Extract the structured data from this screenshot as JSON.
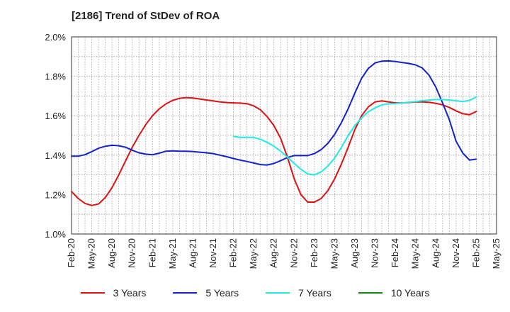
{
  "chart_data": {
    "type": "line",
    "title": "[2186]  Trend of StDev of ROA",
    "xlabel": "",
    "ylabel": "",
    "ylim": [
      1.0,
      2.0
    ],
    "yticks": [
      "2.0%",
      "1.8%",
      "1.6%",
      "1.4%",
      "1.2%",
      "1.0%"
    ],
    "x_tick_labels": [
      "Feb-20",
      "May-20",
      "Aug-20",
      "Nov-20",
      "Feb-21",
      "May-21",
      "Aug-21",
      "Nov-21",
      "Feb-22",
      "May-22",
      "Aug-22",
      "Nov-22",
      "Feb-23",
      "May-23",
      "Aug-23",
      "Nov-23",
      "Feb-24",
      "May-24",
      "Aug-24",
      "Nov-24",
      "Feb-25",
      "May-25"
    ],
    "grid": true,
    "legend_position": "bottom",
    "series": [
      {
        "name": "3 Years",
        "color": "#dd1111",
        "x": [
          "Feb-20",
          "Mar-20",
          "Apr-20",
          "May-20",
          "Jun-20",
          "Jul-20",
          "Aug-20",
          "Sep-20",
          "Oct-20",
          "Nov-20",
          "Dec-20",
          "Jan-21",
          "Feb-21",
          "Mar-21",
          "Apr-21",
          "May-21",
          "Jun-21",
          "Jul-21",
          "Aug-21",
          "Sep-21",
          "Oct-21",
          "Nov-21",
          "Dec-21",
          "Jan-22",
          "Feb-22",
          "Mar-22",
          "Apr-22",
          "May-22",
          "Jun-22",
          "Jul-22",
          "Aug-22",
          "Sep-22",
          "Oct-22",
          "Nov-22",
          "Dec-22",
          "Jan-23",
          "Feb-23",
          "Mar-23",
          "Apr-23",
          "May-23",
          "Jun-23",
          "Jul-23",
          "Aug-23",
          "Sep-23",
          "Oct-23",
          "Nov-23",
          "Dec-23",
          "Jan-24",
          "Feb-24",
          "Mar-24",
          "Apr-24",
          "May-24",
          "Jun-24",
          "Jul-24",
          "Aug-24",
          "Sep-24",
          "Oct-24",
          "Nov-24",
          "Dec-24",
          "Jan-25",
          "Feb-25"
        ],
        "values": [
          1.215,
          1.18,
          1.155,
          1.145,
          1.152,
          1.185,
          1.235,
          1.3,
          1.37,
          1.44,
          1.5,
          1.555,
          1.6,
          1.635,
          1.66,
          1.678,
          1.688,
          1.692,
          1.69,
          1.685,
          1.68,
          1.675,
          1.67,
          1.667,
          1.665,
          1.664,
          1.661,
          1.65,
          1.63,
          1.595,
          1.55,
          1.485,
          1.39,
          1.28,
          1.2,
          1.162,
          1.162,
          1.18,
          1.22,
          1.28,
          1.355,
          1.44,
          1.53,
          1.6,
          1.645,
          1.67,
          1.675,
          1.67,
          1.665,
          1.665,
          1.667,
          1.67,
          1.67,
          1.668,
          1.663,
          1.655,
          1.642,
          1.625,
          1.61,
          1.605,
          1.622
        ]
      },
      {
        "name": "5 Years",
        "color": "#1122cc",
        "x": [
          "Feb-20",
          "Mar-20",
          "Apr-20",
          "May-20",
          "Jun-20",
          "Jul-20",
          "Aug-20",
          "Sep-20",
          "Oct-20",
          "Nov-20",
          "Dec-20",
          "Jan-21",
          "Feb-21",
          "Mar-21",
          "Apr-21",
          "May-21",
          "Jun-21",
          "Jul-21",
          "Aug-21",
          "Sep-21",
          "Oct-21",
          "Nov-21",
          "Dec-21",
          "Jan-22",
          "Feb-22",
          "Mar-22",
          "Apr-22",
          "May-22",
          "Jun-22",
          "Jul-22",
          "Aug-22",
          "Sep-22",
          "Oct-22",
          "Nov-22",
          "Dec-22",
          "Jan-23",
          "Feb-23",
          "Mar-23",
          "Apr-23",
          "May-23",
          "Jun-23",
          "Jul-23",
          "Aug-23",
          "Sep-23",
          "Oct-23",
          "Nov-23",
          "Dec-23",
          "Jan-24",
          "Feb-24",
          "Mar-24",
          "Apr-24",
          "May-24",
          "Jun-24",
          "Jul-24",
          "Aug-24",
          "Sep-24",
          "Oct-24",
          "Nov-24",
          "Dec-24",
          "Jan-25",
          "Feb-25"
        ],
        "values": [
          1.395,
          1.395,
          1.402,
          1.418,
          1.435,
          1.445,
          1.45,
          1.448,
          1.44,
          1.425,
          1.412,
          1.405,
          1.402,
          1.41,
          1.42,
          1.422,
          1.42,
          1.42,
          1.418,
          1.415,
          1.412,
          1.408,
          1.4,
          1.392,
          1.383,
          1.375,
          1.368,
          1.36,
          1.352,
          1.35,
          1.358,
          1.372,
          1.388,
          1.398,
          1.398,
          1.398,
          1.408,
          1.428,
          1.46,
          1.505,
          1.565,
          1.635,
          1.715,
          1.79,
          1.84,
          1.868,
          1.877,
          1.878,
          1.875,
          1.87,
          1.865,
          1.858,
          1.842,
          1.805,
          1.745,
          1.665,
          1.58,
          1.47,
          1.41,
          1.375,
          1.38
        ]
      },
      {
        "name": "7 Years",
        "color": "#22e8e8",
        "x": [
          "Feb-22",
          "Mar-22",
          "Apr-22",
          "May-22",
          "Jun-22",
          "Jul-22",
          "Aug-22",
          "Sep-22",
          "Oct-22",
          "Nov-22",
          "Dec-22",
          "Jan-23",
          "Feb-23",
          "Mar-23",
          "Apr-23",
          "May-23",
          "Jun-23",
          "Jul-23",
          "Aug-23",
          "Sep-23",
          "Oct-23",
          "Nov-23",
          "Dec-23",
          "Jan-24",
          "Feb-24",
          "Mar-24",
          "Apr-24",
          "May-24",
          "Jun-24",
          "Jul-24",
          "Aug-24",
          "Sep-24",
          "Oct-24",
          "Nov-24",
          "Dec-24",
          "Jan-25",
          "Feb-25"
        ],
        "values": [
          1.495,
          1.49,
          1.49,
          1.49,
          1.48,
          1.465,
          1.445,
          1.42,
          1.39,
          1.358,
          1.328,
          1.305,
          1.3,
          1.315,
          1.345,
          1.385,
          1.44,
          1.5,
          1.55,
          1.59,
          1.62,
          1.64,
          1.655,
          1.66,
          1.662,
          1.665,
          1.668,
          1.672,
          1.676,
          1.68,
          1.682,
          1.682,
          1.68,
          1.676,
          1.672,
          1.678,
          1.695
        ]
      },
      {
        "name": "10 Years",
        "color": "#118811",
        "x": [],
        "values": []
      }
    ]
  }
}
